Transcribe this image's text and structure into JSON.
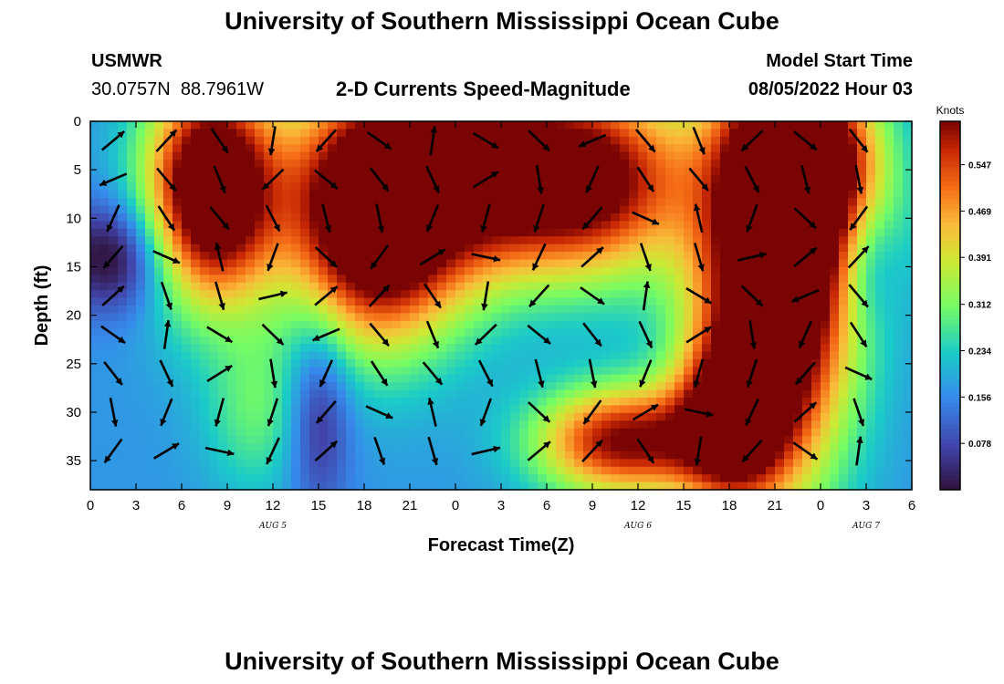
{
  "header": {
    "title": "University of Southern Mississippi Ocean Cube",
    "station": "USMWR",
    "coords": "30.0757N  88.7961W",
    "plot_title": "2-D Currents Speed-Magnitude",
    "model_label": "Model Start Time",
    "model_time": "08/05/2022 Hour 03"
  },
  "footer": {
    "title": "University of Southern Mississippi Ocean Cube"
  },
  "colors": {
    "low": "#30123b",
    "high": "#7a0403"
  },
  "chart_data": {
    "type": "heatmap",
    "xlabel": "Forecast Time(Z)",
    "ylabel": "Depth (ft)",
    "x_ticks": [
      "0",
      "3",
      "6",
      "9",
      "12",
      "15",
      "18",
      "21",
      "0",
      "3",
      "6",
      "9",
      "12",
      "15",
      "18",
      "21",
      "0",
      "3",
      "6"
    ],
    "x_range_hours": [
      0,
      54
    ],
    "day_labels": [
      {
        "label": "AUG 5",
        "hour": 12
      },
      {
        "label": "AUG 6",
        "hour": 36
      },
      {
        "label": "AUG 7",
        "hour": 51
      }
    ],
    "y_ticks": [
      0,
      5,
      10,
      15,
      20,
      25,
      30,
      35
    ],
    "y_range": [
      0,
      38
    ],
    "colorbar": {
      "title": "Knots",
      "ticks": [
        "0.547",
        "0.469",
        "0.391",
        "0.312",
        "0.234",
        "0.156",
        "0.078"
      ],
      "values": [
        0.547,
        0.469,
        0.391,
        0.312,
        0.234,
        0.156,
        0.078
      ],
      "range": [
        0,
        0.62
      ]
    },
    "speed_blobs": [
      {
        "t": 8,
        "d": 7,
        "st": 3,
        "sd": 8,
        "a": 0.62
      },
      {
        "t": 19,
        "d": 9,
        "st": 4,
        "sd": 9,
        "a": 0.72
      },
      {
        "t": 32,
        "d": 6,
        "st": 5,
        "sd": 7,
        "a": 0.55
      },
      {
        "t": 45,
        "d": 16,
        "st": 3.5,
        "sd": 14,
        "a": 0.68
      },
      {
        "t": 47,
        "d": 3,
        "st": 3,
        "sd": 6,
        "a": 0.4
      },
      {
        "t": 35,
        "d": 33,
        "st": 4,
        "sd": 4,
        "a": 0.45
      },
      {
        "t": 42,
        "d": 31,
        "st": 2.5,
        "sd": 6,
        "a": 0.38
      },
      {
        "t": 11,
        "d": 30,
        "st": 2.5,
        "sd": 6,
        "a": 0.12
      },
      {
        "t": 26,
        "d": 4,
        "st": 3,
        "sd": 8,
        "a": 0.2
      },
      {
        "t": 50,
        "d": 10,
        "st": 3,
        "sd": 7,
        "a": 0.12
      }
    ],
    "calm_zones": [
      {
        "t": 1.5,
        "d": 14,
        "st": 2.5,
        "sd": 4,
        "a": 0.2
      },
      {
        "t": 51,
        "d": 14,
        "st": 1.5,
        "sd": 5,
        "a": 0.14
      },
      {
        "t": 15,
        "d": 30,
        "st": 1.5,
        "sd": 7,
        "a": 0.15
      }
    ],
    "vector_angles_deg": [
      -40,
      120,
      80,
      100,
      -70,
      10,
      30,
      60,
      110,
      -60,
      40,
      50,
      20,
      70,
      -120,
      30,
      80,
      -60,
      30,
      45,
      30,
      -120,
      60,
      20,
      -40,
      100,
      10,
      60,
      100,
      30,
      80,
      -40,
      20,
      60,
      90,
      100,
      120,
      30,
      70,
      40
    ]
  }
}
